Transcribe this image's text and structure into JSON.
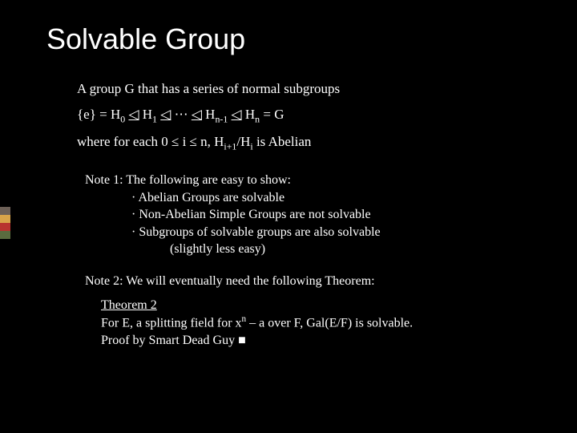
{
  "title": "Solvable Group",
  "definition": {
    "line1": "A group G that has a series of normal subgroups",
    "series_prefix": "{e} = H",
    "series_sub0": "0",
    "series_tri": "◁",
    "series_h": " H",
    "series_sub1": "1",
    "series_dots": " ⋯ ",
    "series_subn1": "n-1",
    "series_subn": "n",
    "series_suffix": " = G",
    "line3_a": "where for each 0 ≤ i ≤ n, H",
    "line3_sub1": "i+1",
    "line3_b": "/H",
    "line3_sub2": "i",
    "line3_c": " is Abelian"
  },
  "note1": {
    "heading": "Note 1:  The following are easy to show:",
    "b1": "Abelian Groups are solvable",
    "b2": "Non-Abelian Simple Groups are not solvable",
    "b3": "Subgroups of solvable groups are also solvable",
    "b3_extra": "(slightly less easy)"
  },
  "note2": {
    "heading": "Note 2:  We will eventually need the following Theorem:",
    "theorem_title": "Theorem 2",
    "theorem_body_a": "For E, a splitting field for x",
    "theorem_body_sup": "n",
    "theorem_body_b": " – a over F, Gal(E/F) is solvable.",
    "proof": "Proof by Smart Dead Guy ",
    "qed": "■"
  },
  "accent_colors": [
    "#6d6057",
    "#d9a44a",
    "#b8342f",
    "#5a6b3f"
  ]
}
